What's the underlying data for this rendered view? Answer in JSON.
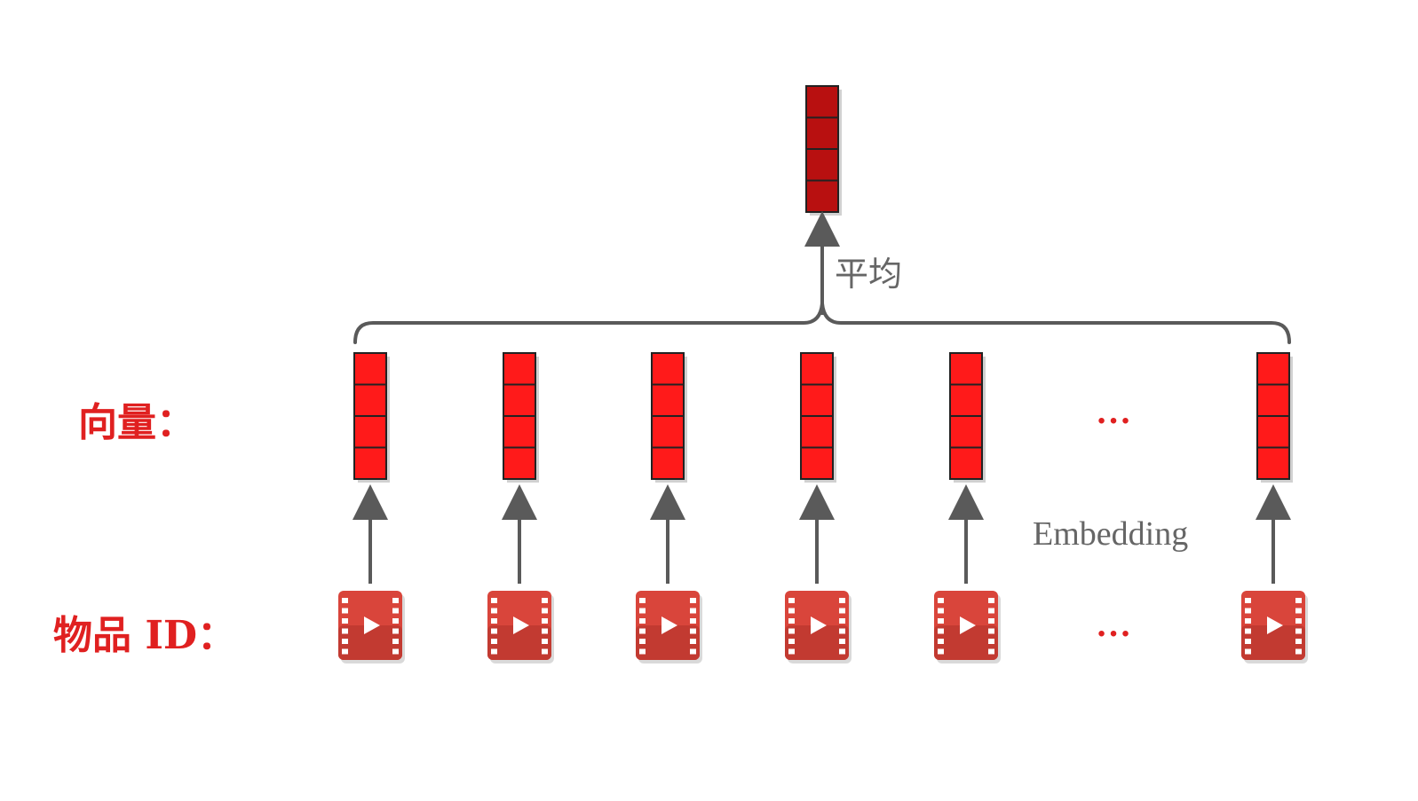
{
  "labels": {
    "vectors": "向量：",
    "item_ids": "物品 ID：",
    "average": "平均",
    "embedding": "Embedding",
    "vector_ellipsis": "…",
    "item_ellipsis": "…"
  },
  "colors": {
    "vector_fill": "#ff1a1a",
    "pooled_fill": "#b81010",
    "label_red": "#e02020",
    "arrow_gray": "#5a5a5a",
    "video_icon": "#d9453b"
  },
  "diagram": {
    "item_count_shown": 6,
    "vector_cells": 4,
    "item_icon": "video-film-icon"
  }
}
